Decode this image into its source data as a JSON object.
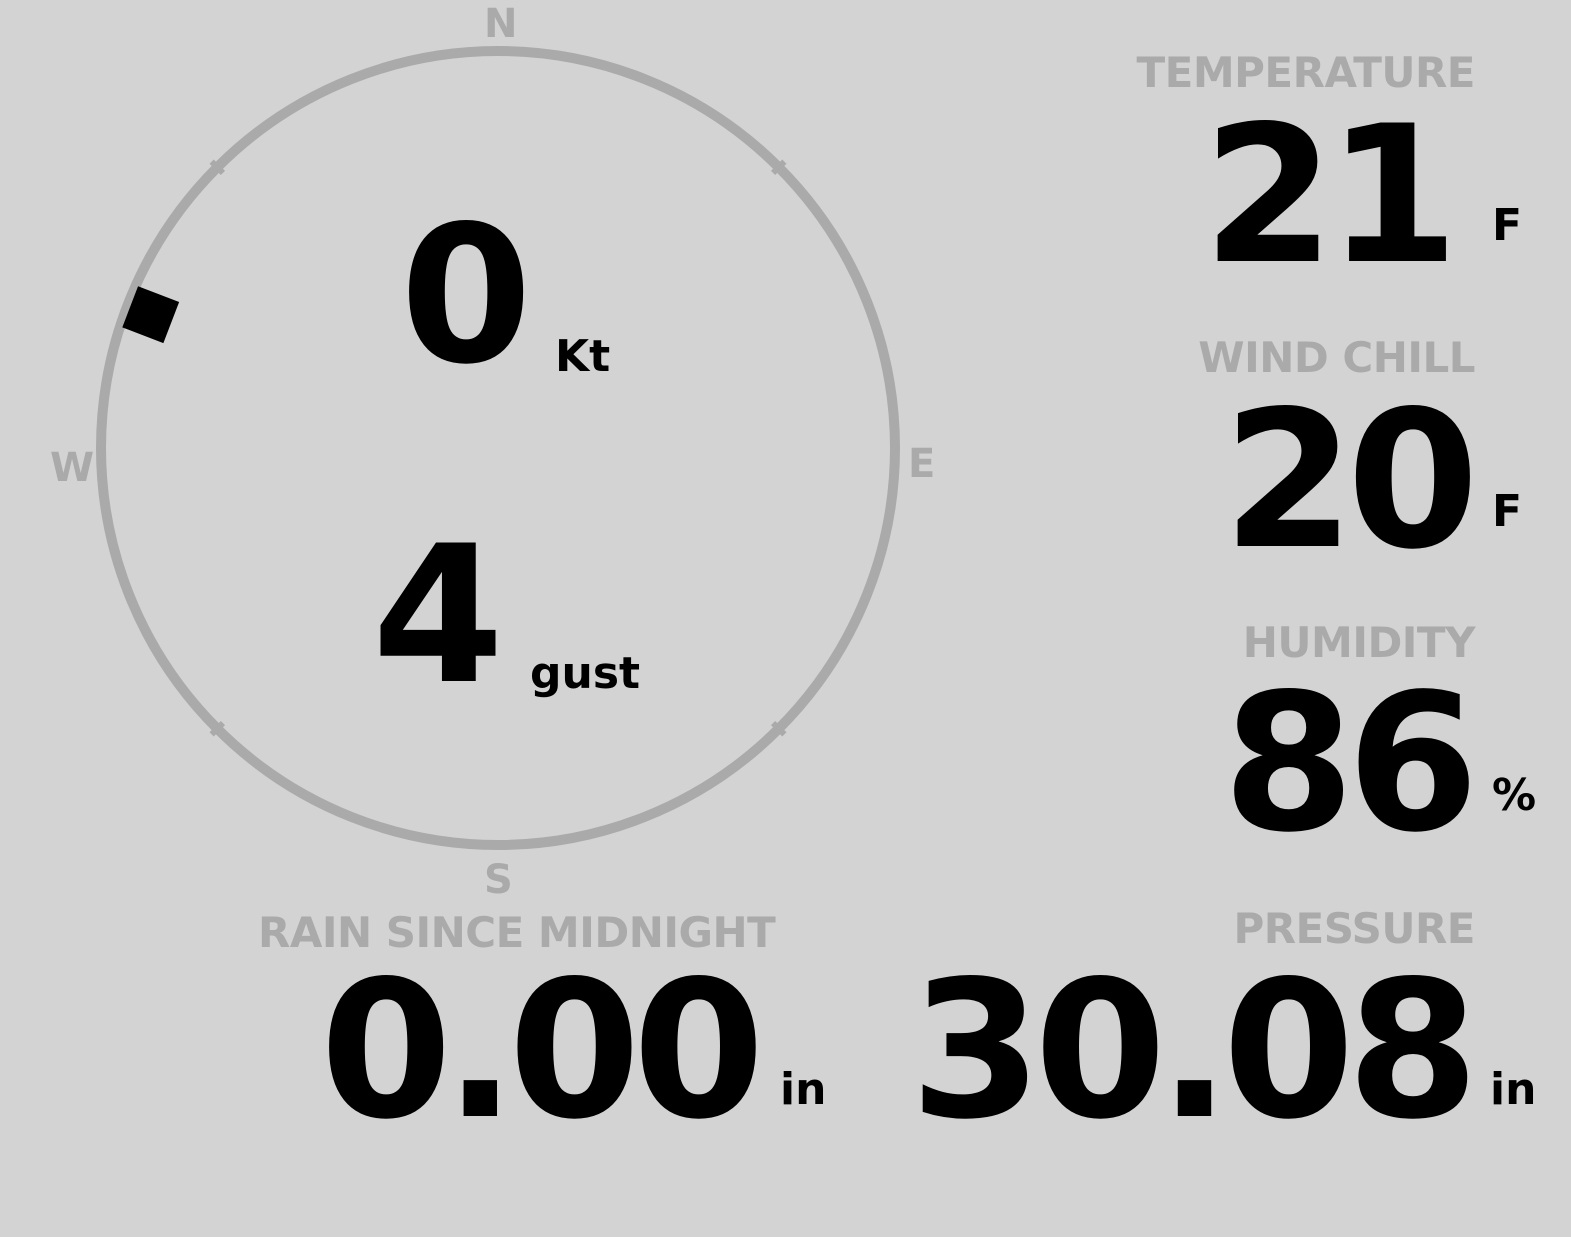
{
  "wind": {
    "speed": "0",
    "speed_unit": "Kt",
    "gust": "4",
    "gust_unit": "gust",
    "direction_deg": 291,
    "compass": {
      "n": "N",
      "e": "E",
      "s": "S",
      "w": "W"
    }
  },
  "temperature": {
    "label": "TEMPERATURE",
    "value": "21",
    "unit": "F"
  },
  "wind_chill": {
    "label": "WIND CHILL",
    "value": "20",
    "unit": "F"
  },
  "humidity": {
    "label": "HUMIDITY",
    "value": "86",
    "unit": "%"
  },
  "rain": {
    "label": "RAIN SINCE MIDNIGHT",
    "value": "0.00",
    "unit": "in"
  },
  "pressure": {
    "label": "PRESSURE",
    "value": "30.08",
    "unit": "in"
  },
  "colors": {
    "background": "#d3d3d3",
    "label": "#aaaaaa",
    "value": "#000000"
  }
}
